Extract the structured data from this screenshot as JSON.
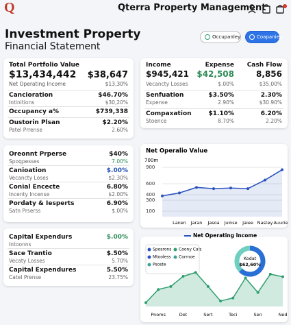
{
  "header": {
    "logo": "Q",
    "title": "Qterra Property Management",
    "badge_color": "#d9342b"
  },
  "page": {
    "title": "Investment Property",
    "subtitle": "Financial Statement",
    "buttons": [
      "Occupanley",
      "Coapaniey"
    ]
  },
  "summary": {
    "title": "Total Portfolio Value",
    "main": "$13,434,442",
    "main_right": "$38,647",
    "sub": "Net Operating Income",
    "sub_right": "$13,30%",
    "rows": [
      {
        "label": "Cancioration",
        "value": "$46.70%",
        "note": "Intinitions",
        "note_value": "$30,20%"
      },
      {
        "label": "Occupancy a%",
        "value": "$739,338"
      },
      {
        "label": "Oustorin Plsan",
        "value": "$2.20%",
        "note": "Patel Prrense",
        "note_value": "2.60%"
      }
    ]
  },
  "cashflow": {
    "headers": [
      "Income",
      "Expense",
      "Cash Flow"
    ],
    "main": [
      "$945,421",
      "$42,508",
      "8,856"
    ],
    "main_colors": [
      "#111111",
      "#2e8b57",
      "#111111"
    ],
    "rows": [
      [
        "Vecancty Losses",
        "$.00%",
        "$35,00%"
      ],
      [
        "Senfuation",
        "$3.50%",
        "2.30%"
      ],
      [
        "Expense",
        "2.90%",
        "$30.90%"
      ],
      [
        "Compaxation",
        "$1.10%",
        "6.20%"
      ],
      [
        "Stoence",
        "8.70%",
        "2.20%"
      ]
    ]
  },
  "expenses": {
    "rows": [
      {
        "label": "Oreonnt Prperse",
        "value": "$40%",
        "note": "Spoqpesses",
        "note_value": "7.00%",
        "note_color": "#2e8b57"
      },
      {
        "label": "Canioation",
        "value": "$.00%",
        "value_color": "#1f4fb5",
        "note": "Vecancty Loses",
        "note_value": "$2.30%"
      },
      {
        "label": "Conial Encecte",
        "value": "6.80%",
        "note": "Incenty Incense",
        "note_value": "$2.00%"
      },
      {
        "label": "Pordaty & Iesperts",
        "value": "6.90%",
        "note": "Satn Prserss",
        "note_value": "$.00%"
      }
    ]
  },
  "capital": {
    "rows": [
      {
        "label": "Capital Expendurs",
        "value": "$.00%",
        "value_color": "#2e8b57",
        "note": "Intoonns"
      },
      {
        "label": "Sace Trantio",
        "value": "$.50%",
        "note": "Vecaty Losses",
        "note_value": "5.70%"
      },
      {
        "label": "Capital Expendures",
        "value": "5.50%",
        "note": "Catel Prense",
        "note_value": "23.75%"
      }
    ]
  },
  "chart_data": [
    {
      "type": "line",
      "title": "Net Operalio Value",
      "y_label": "700m",
      "categories": [
        null,
        "Lanen",
        "Jaran",
        "Jasoa",
        "Juinse",
        "Jaiee",
        "Nastey",
        "Auuriey"
      ],
      "series": [
        {
          "name": "Net Operalio Value",
          "color": "#2a52be",
          "values": [
            378,
            433,
            533,
            511,
            522,
            511,
            667,
            856
          ]
        }
      ],
      "ylim": [
        0,
        1000
      ],
      "yticks": [
        900,
        600,
        400,
        300,
        100
      ],
      "grid": true
    },
    {
      "type": "area",
      "title": "Net Operating Income",
      "categories": [
        null,
        "Pnoms",
        null,
        "Det",
        null,
        "Sert",
        null,
        "Teci",
        null,
        "Sen",
        null,
        "Ned"
      ],
      "series": [
        {
          "name": "Net Operating Income",
          "color": "#2e9e6e",
          "values": [
            9,
            40,
            47,
            71,
            80,
            47,
            13,
            20,
            67,
            33,
            76,
            70
          ]
        }
      ],
      "legend": [
        {
          "name": "Sposrons",
          "color": "#2a52be"
        },
        {
          "name": "Coony Ca's",
          "color": "#2e9e6e"
        },
        {
          "name": "Mtooless",
          "color": "#2a52be"
        },
        {
          "name": "Corrnoe",
          "color": "#3aa39a"
        },
        {
          "name": "Psoste",
          "color": "#3aa39a"
        }
      ],
      "ylim": [
        0,
        100
      ]
    },
    {
      "type": "donut",
      "label": "Kodat",
      "values": [
        62.6
      ],
      "value_labels": [
        "$62,60%"
      ],
      "color": "#2a6fd6",
      "track_color": "#6fcfc0",
      "max": 100
    }
  ]
}
